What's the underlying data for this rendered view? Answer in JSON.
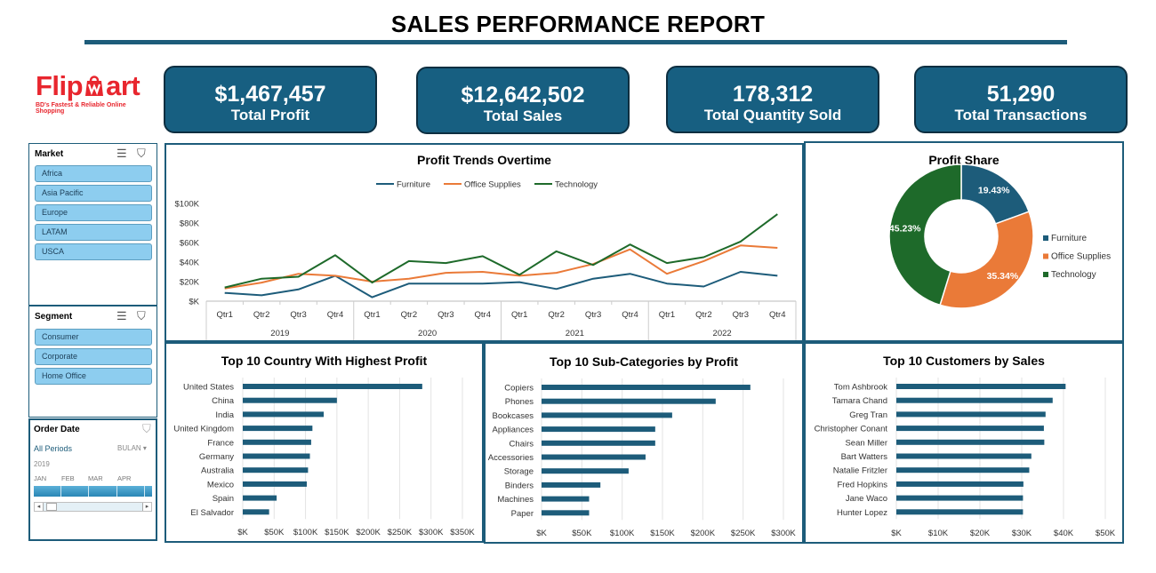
{
  "title": "SALES PERFORMANCE REPORT",
  "logo": {
    "brand_left": "Flip",
    "brand_right": "art",
    "tagline": "BD's Fastest & Reliable Online Shopping"
  },
  "kpis": [
    {
      "value": "$1,467,457",
      "label": "Total Profit"
    },
    {
      "value": "$12,642,502",
      "label": "Total Sales"
    },
    {
      "value": "178,312",
      "label": "Total Quantity Sold"
    },
    {
      "value": "51,290",
      "label": "Total Transactions"
    }
  ],
  "colors": {
    "furniture": "#1d5c7a",
    "office_supplies": "#ea7a38",
    "technology": "#1e6a2a",
    "bar": "#1d5c7a",
    "slicer_item": "#8dcdef"
  },
  "slicers": {
    "market": {
      "title": "Market",
      "items": [
        "Africa",
        "Asia Pacific",
        "Europe",
        "LATAM",
        "USCA"
      ]
    },
    "segment": {
      "title": "Segment",
      "items": [
        "Consumer",
        "Corporate",
        "Home Office"
      ]
    },
    "order_date": {
      "title": "Order Date",
      "periods": "All Periods",
      "level": "BULAN",
      "year": "2019",
      "months": [
        "JAN",
        "FEB",
        "MAR",
        "APR"
      ]
    }
  },
  "chart_data": [
    {
      "type": "line",
      "title": "Profit Trends Overtime",
      "categories": [
        "Qtr1",
        "Qtr2",
        "Qtr3",
        "Qtr4",
        "Qtr1",
        "Qtr2",
        "Qtr3",
        "Qtr4",
        "Qtr1",
        "Qtr2",
        "Qtr3",
        "Qtr4",
        "Qtr1",
        "Qtr2",
        "Qtr3",
        "Qtr4"
      ],
      "years": [
        "2019",
        "2020",
        "2021",
        "2022"
      ],
      "series": [
        {
          "name": "Furniture",
          "values": [
            8.5,
            6,
            12,
            26,
            4,
            18,
            18,
            18,
            19.5,
            12.5,
            23,
            28,
            18,
            15,
            30,
            26
          ]
        },
        {
          "name": "Office Supplies",
          "values": [
            13,
            19,
            28,
            26,
            20,
            23,
            29,
            30,
            26,
            29,
            38,
            53,
            28,
            41,
            57,
            54.5
          ]
        },
        {
          "name": "Technology",
          "values": [
            14,
            23,
            25,
            47,
            19,
            41,
            39,
            46,
            27,
            51,
            37,
            58,
            39,
            45,
            61,
            89
          ]
        }
      ],
      "y_ticks": [
        "$K",
        "$20K",
        "$40K",
        "$60K",
        "$80K",
        "$100K"
      ],
      "ylim": [
        0,
        100
      ],
      "legend": "top",
      "grid": false
    },
    {
      "type": "pie",
      "title": "Profit Share",
      "categories": [
        "Furniture",
        "Office Supplies",
        "Technology"
      ],
      "values": [
        19.43,
        35.34,
        45.23
      ],
      "labels": [
        "19.43%",
        "35.34%",
        "45.23%"
      ],
      "legend": "right"
    },
    {
      "type": "bar",
      "title": "Top 10 Country With Highest Profit",
      "categories": [
        "United States",
        "China",
        "India",
        "United Kingdom",
        "France",
        "Germany",
        "Australia",
        "Mexico",
        "Spain",
        "El Salvador"
      ],
      "values": [
        286,
        150,
        129,
        111,
        109,
        107,
        104,
        102,
        54,
        42
      ],
      "x_ticks": [
        "$K",
        "$50K",
        "$100K",
        "$150K",
        "$200K",
        "$250K",
        "$300K",
        "$350K"
      ],
      "xlim": [
        0,
        350
      ],
      "grid": true
    },
    {
      "type": "bar",
      "title": "Top 10 Sub-Categories by Profit",
      "categories": [
        "Copiers",
        "Phones",
        "Bookcases",
        "Appliances",
        "Chairs",
        "Accessories",
        "Storage",
        "Binders",
        "Machines",
        "Paper"
      ],
      "values": [
        259,
        216,
        162,
        141,
        141,
        129,
        108,
        73,
        59,
        59
      ],
      "x_ticks": [
        "$K",
        "$50K",
        "$100K",
        "$150K",
        "$200K",
        "$250K",
        "$300K"
      ],
      "xlim": [
        0,
        300
      ],
      "grid": true
    },
    {
      "type": "bar",
      "title": "Top 10 Customers by Sales",
      "categories": [
        "Tom Ashbrook",
        "Tamara Chand",
        "Greg Tran",
        "Christopher Conant",
        "Sean Miller",
        "Bart Watters",
        "Natalie Fritzler",
        "Fred Hopkins",
        "Jane Waco",
        "Hunter Lopez"
      ],
      "values": [
        40.5,
        37.4,
        35.7,
        35.3,
        35.4,
        32.3,
        31.8,
        30.4,
        30.3,
        30.3
      ],
      "x_ticks": [
        "$K",
        "$10K",
        "$20K",
        "$30K",
        "$40K",
        "$50K"
      ],
      "xlim": [
        0,
        50
      ],
      "grid": true
    }
  ]
}
